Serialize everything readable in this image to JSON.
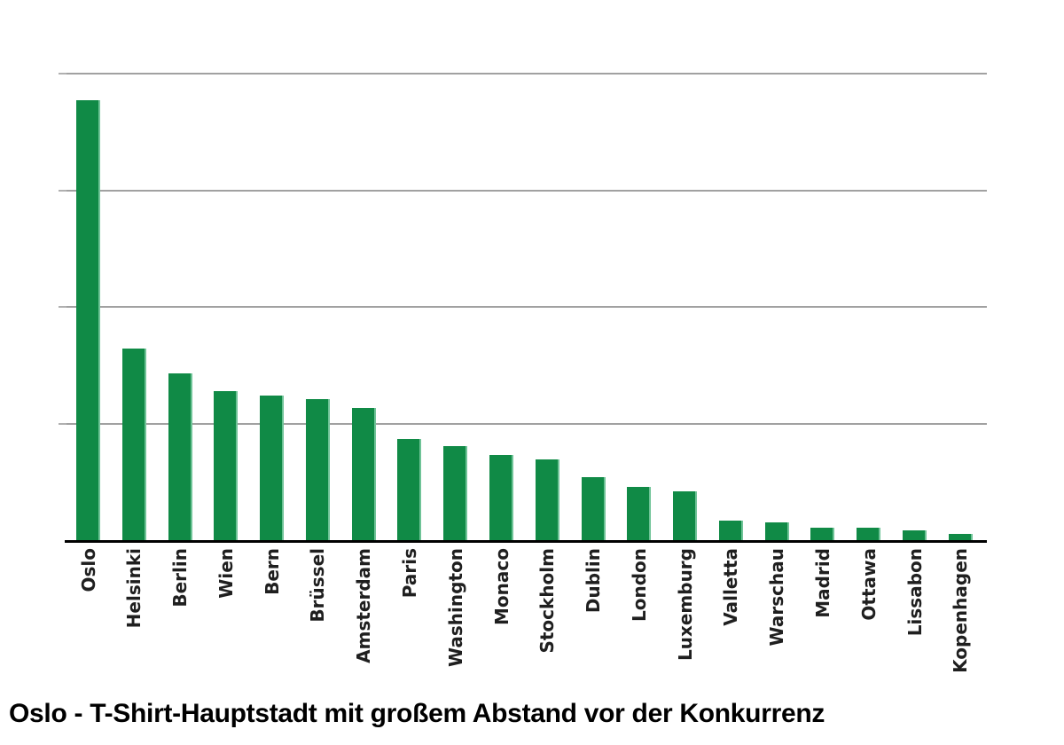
{
  "chart_data": {
    "type": "bar",
    "title": "Oslo - T-Shirt-Hauptstadt mit großem Abstand vor der Konkurrenz",
    "categories": [
      "Oslo",
      "Helsinki",
      "Berlin",
      "Wien",
      "Bern",
      "Brüssel",
      "Amsterdam",
      "Paris",
      "Washington",
      "Monaco",
      "Stockholm",
      "Dublin",
      "London",
      "Luxemburg",
      "Valletta",
      "Warschau",
      "Madrid",
      "Ottawa",
      "Lissabon",
      "Kopenhagen"
    ],
    "values": [
      3.77,
      1.64,
      1.43,
      1.28,
      1.24,
      1.21,
      1.13,
      0.87,
      0.81,
      0.73,
      0.69,
      0.54,
      0.46,
      0.42,
      0.17,
      0.15,
      0.11,
      0.11,
      0.08,
      0.055
    ],
    "value_unit": "relative units (y-axis unlabeled; 1.0 = one gridline interval)",
    "xlabel": "",
    "ylabel": "",
    "ylim": [
      0,
      4
    ],
    "gridline_values": [
      1,
      2,
      3,
      4
    ],
    "grid": "horizontal",
    "legend": "none",
    "colors": {
      "bar": "#108a46",
      "bar_edge_highlight": "#6fc397",
      "gridline": "#a1a1a1",
      "tick": "#b0b0b0",
      "axis": "#000000",
      "label": "#1f1f1f",
      "title": "#000000",
      "background": "#ffffff"
    }
  }
}
